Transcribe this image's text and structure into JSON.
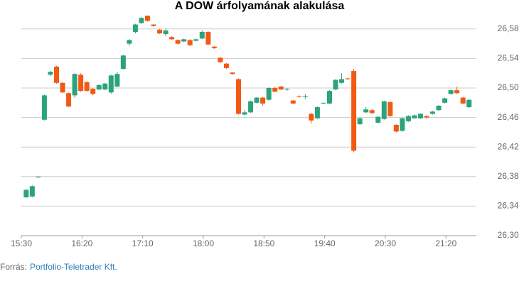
{
  "chart_data": {
    "type": "candlestick",
    "title": "A DOW árfolyamának alakulása",
    "source_label": "Forrás:",
    "source": "Portfolio-Teletrader Kft.",
    "up_color": "#2ba37c",
    "down_color": "#f05a14",
    "grid": true,
    "x": [
      4,
      9,
      14,
      19,
      24,
      29,
      34,
      39,
      44,
      49,
      54,
      59,
      64,
      69,
      74,
      79,
      84,
      89,
      94,
      99,
      104,
      109,
      114,
      119,
      124,
      129,
      134,
      139,
      144,
      149,
      154,
      159,
      164,
      169,
      174,
      179,
      184,
      189,
      194,
      199,
      204,
      209,
      214,
      219,
      224,
      229,
      234,
      239,
      244,
      249,
      254,
      259,
      264,
      269,
      274,
      279,
      284,
      289,
      294,
      299,
      304,
      309,
      314,
      319,
      324,
      329,
      334,
      339,
      344,
      349,
      354,
      359,
      364,
      369
    ],
    "open": [
      26352,
      26353,
      26379,
      26457,
      26518,
      26529,
      26507,
      26493,
      26490,
      26518,
      26508,
      26499,
      26498,
      26498,
      26494,
      26502,
      26526,
      26560,
      26576,
      26588,
      26598,
      26586,
      26579,
      26573,
      26569,
      26565,
      26563,
      26565,
      26564,
      26567,
      26576,
      26556,
      26541,
      26533,
      26521,
      26512,
      26464,
      26467,
      26480,
      26487,
      26484,
      26500,
      26502,
      26498,
      26483,
      26489,
      26488,
      26465,
      26459,
      26479,
      26479,
      26498,
      26507,
      26513,
      26523,
      26451,
      26467,
      26470,
      26453,
      26458,
      26481,
      26450,
      26442,
      26455,
      26459,
      26459,
      26462,
      26465,
      26470,
      26480,
      26492,
      26497,
      26487,
      26474
    ],
    "high": [
      26363,
      26368,
      26380,
      26491,
      26523,
      26530,
      26508,
      26494,
      26520,
      26520,
      26509,
      26500,
      26505,
      26507,
      26518,
      26522,
      26545,
      26566,
      26587,
      26596,
      26598,
      26587,
      26580,
      26580,
      26570,
      26566,
      26567,
      26566,
      26567,
      26578,
      26577,
      26557,
      26542,
      26534,
      26521,
      26513,
      26470,
      26483,
      26488,
      26488,
      26501,
      26502,
      26503,
      26500,
      26484,
      26490,
      26492,
      26466,
      26475,
      26480,
      26497,
      26512,
      26520,
      26514,
      26526,
      26460,
      26474,
      26471,
      26462,
      26483,
      26482,
      26451,
      26460,
      26463,
      26464,
      26466,
      26463,
      26469,
      26477,
      26487,
      26498,
      26502,
      26488,
      26485
    ],
    "low": [
      26351,
      26352,
      26378,
      26456,
      26516,
      26506,
      26493,
      26474,
      26487,
      26495,
      26495,
      26490,
      26497,
      26497,
      26492,
      26501,
      26525,
      26557,
      26574,
      26587,
      26590,
      26583,
      26573,
      26570,
      26565,
      26559,
      26562,
      26557,
      26563,
      26566,
      26558,
      26553,
      26534,
      26526,
      26518,
      26464,
      26463,
      26466,
      26479,
      26476,
      26483,
      26494,
      26497,
      26496,
      26478,
      26487,
      26485,
      26452,
      26458,
      26478,
      26478,
      26497,
      26506,
      26511,
      26413,
      26450,
      26466,
      26465,
      26452,
      26457,
      26461,
      26440,
      26441,
      26454,
      26458,
      26458,
      26459,
      26464,
      26469,
      26479,
      26491,
      26492,
      26478,
      26473
    ],
    "close": [
      26362,
      26367,
      26380,
      26490,
      26522,
      26507,
      26494,
      26475,
      26519,
      26496,
      26496,
      26492,
      26504,
      26506,
      26517,
      26519,
      26544,
      26565,
      26586,
      26595,
      26591,
      26584,
      26574,
      26578,
      26566,
      26560,
      26566,
      26558,
      26566,
      26576,
      26559,
      26554,
      26535,
      26527,
      26519,
      26465,
      26467,
      26482,
      26487,
      26479,
      26500,
      26495,
      26498,
      26499,
      26479,
      26488,
      26489,
      26456,
      26474,
      26480,
      26496,
      26511,
      26512,
      26512,
      26415,
      26459,
      26471,
      26466,
      26461,
      26482,
      26462,
      26441,
      26459,
      26462,
      26463,
      26465,
      26460,
      26468,
      26476,
      26486,
      26497,
      26493,
      26479,
      26484
    ],
    "xlim": [
      0,
      375
    ],
    "xticks": [
      {
        "value": 0,
        "label": "15:30"
      },
      {
        "value": 50,
        "label": "16:20"
      },
      {
        "value": 100,
        "label": "17:10"
      },
      {
        "value": 150,
        "label": "18:00"
      },
      {
        "value": 200,
        "label": "18:50"
      },
      {
        "value": 250,
        "label": "19:40"
      },
      {
        "value": 300,
        "label": "20:30"
      },
      {
        "value": 350,
        "label": "21:20"
      }
    ],
    "ylim": [
      26300,
      26600
    ],
    "yticks": [
      {
        "value": 26300,
        "label": "26,300"
      },
      {
        "value": 26340,
        "label": "26,340"
      },
      {
        "value": 26380,
        "label": "26,380"
      },
      {
        "value": 26420,
        "label": "26,420"
      },
      {
        "value": 26460,
        "label": "26,460"
      },
      {
        "value": 26500,
        "label": "26,500"
      },
      {
        "value": 26540,
        "label": "26,540"
      },
      {
        "value": 26580,
        "label": "26,580"
      }
    ]
  }
}
